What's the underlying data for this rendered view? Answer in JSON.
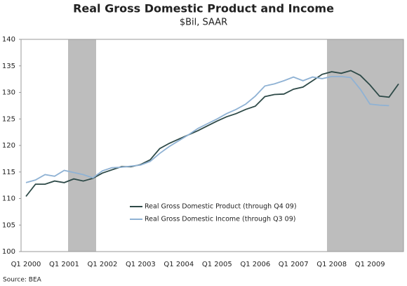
{
  "chart_data": {
    "type": "line",
    "title": "Real Gross Domestic Product and Income",
    "subtitle": "$Bil, SAAR",
    "source": "Source: BEA",
    "categories": [
      "Q1 2000",
      null,
      null,
      null,
      "Q1 2001",
      null,
      null,
      null,
      "Q1 2002",
      null,
      null,
      null,
      "Q1 2003",
      null,
      null,
      null,
      "Q1 2004",
      null,
      null,
      null,
      "Q1 2005",
      null,
      null,
      null,
      "Q1 2006",
      null,
      null,
      null,
      "Q1 2007",
      null,
      null,
      null,
      "Q1 2008",
      null,
      null,
      null,
      "Q1 2009",
      null,
      null,
      null
    ],
    "series": [
      {
        "name": "Real Gross Domestic Product (through Q4 09)",
        "color": "#2e4a48",
        "values": [
          110.4,
          112.7,
          112.7,
          113.3,
          113.0,
          113.7,
          113.3,
          113.8,
          114.8,
          115.4,
          116.0,
          116.0,
          116.4,
          117.3,
          119.4,
          120.4,
          121.2,
          122.0,
          122.8,
          123.7,
          124.6,
          125.4,
          126.0,
          126.8,
          127.4,
          129.2,
          129.6,
          129.7,
          130.6,
          131.0,
          132.2,
          133.4,
          133.9,
          133.6,
          134.1,
          133.2,
          131.4,
          129.3,
          129.1,
          131.6
        ]
      },
      {
        "name": "Real Gross Domestic Income (through Q3 09)",
        "color": "#8fb2d4",
        "values": [
          113.0,
          113.5,
          114.5,
          114.2,
          115.3,
          114.9,
          114.5,
          113.9,
          115.2,
          115.8,
          115.9,
          116.1,
          116.3,
          117.0,
          118.5,
          119.8,
          120.9,
          122.0,
          123.2,
          124.1,
          125.0,
          126.0,
          126.8,
          127.8,
          129.3,
          131.2,
          131.6,
          132.2,
          132.9,
          132.2,
          132.9,
          132.6,
          133.0,
          133.0,
          132.8,
          130.6,
          127.8,
          127.6,
          127.5,
          null
        ]
      }
    ],
    "ylim": [
      100,
      140
    ],
    "yticks": [
      100,
      105,
      110,
      115,
      120,
      125,
      130,
      135,
      140
    ],
    "grid": false
  }
}
